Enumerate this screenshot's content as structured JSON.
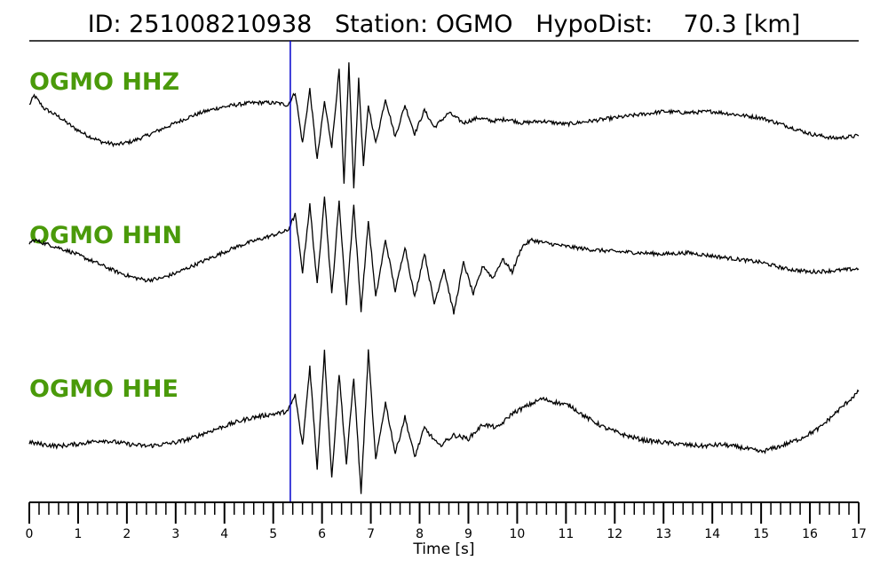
{
  "header": {
    "id_label": "ID:",
    "id_value": "251008210938",
    "station_label": "Station:",
    "station_value": "OGMO",
    "hypodist_label": "HypoDist:",
    "hypodist_value": "70.3",
    "hypodist_unit": "[km]"
  },
  "colors": {
    "trace": "#000000",
    "pick_line": "#0000cc",
    "label": "#4a9a0a"
  },
  "chart_data": {
    "type": "line",
    "xlabel": "Time [s]",
    "xlim": [
      0,
      17
    ],
    "major_ticks": [
      0,
      1,
      2,
      3,
      4,
      5,
      6,
      7,
      8,
      9,
      10,
      11,
      12,
      13,
      14,
      15,
      16,
      17
    ],
    "minor_step": 0.2,
    "pick_time": 5.35,
    "series": [
      {
        "name": "OGMO HHZ",
        "description": "waveform trace, normalized amplitude (positive up)",
        "x": [
          0,
          0.1,
          0.3,
          0.6,
          0.9,
          1.2,
          1.5,
          1.8,
          2.1,
          2.4,
          2.7,
          3.0,
          3.3,
          3.6,
          3.9,
          4.2,
          4.5,
          4.8,
          5.1,
          5.3,
          5.45,
          5.6,
          5.75,
          5.9,
          6.05,
          6.2,
          6.35,
          6.45,
          6.55,
          6.65,
          6.75,
          6.85,
          6.95,
          7.1,
          7.3,
          7.5,
          7.7,
          7.9,
          8.1,
          8.3,
          8.6,
          8.9,
          9.2,
          9.5,
          9.8,
          10.1,
          10.5,
          11.0,
          11.5,
          12.0,
          12.5,
          13.0,
          13.5,
          14.0,
          14.5,
          15.0,
          15.5,
          16.0,
          16.5,
          17.0
        ],
        "values": [
          0.3,
          0.45,
          0.25,
          0.12,
          -0.05,
          -0.18,
          -0.28,
          -0.32,
          -0.27,
          -0.18,
          -0.08,
          0.02,
          0.12,
          0.2,
          0.26,
          0.3,
          0.33,
          0.34,
          0.33,
          0.3,
          0.5,
          -0.3,
          0.55,
          -0.55,
          0.35,
          -0.35,
          0.85,
          -0.95,
          0.95,
          -1.0,
          0.7,
          -0.65,
          0.3,
          -0.3,
          0.4,
          -0.2,
          0.3,
          -0.15,
          0.22,
          -0.05,
          0.18,
          0.02,
          0.1,
          0.05,
          0.08,
          0.02,
          0.05,
          0.0,
          0.05,
          0.1,
          0.15,
          0.2,
          0.18,
          0.2,
          0.15,
          0.1,
          -0.02,
          -0.15,
          -0.22,
          -0.18
        ]
      },
      {
        "name": "OGMO HHN",
        "description": "waveform trace, normalized amplitude (positive up)",
        "x": [
          0,
          0.1,
          0.3,
          0.6,
          0.9,
          1.2,
          1.5,
          1.8,
          2.1,
          2.4,
          2.7,
          3.0,
          3.3,
          3.6,
          3.9,
          4.2,
          4.5,
          4.8,
          5.1,
          5.3,
          5.45,
          5.6,
          5.75,
          5.9,
          6.05,
          6.2,
          6.35,
          6.5,
          6.65,
          6.8,
          6.95,
          7.1,
          7.3,
          7.5,
          7.7,
          7.9,
          8.1,
          8.3,
          8.5,
          8.7,
          8.9,
          9.1,
          9.3,
          9.5,
          9.7,
          9.9,
          10.1,
          10.3,
          10.6,
          11.0,
          11.5,
          12.0,
          12.5,
          13.0,
          13.5,
          14.0,
          14.5,
          15.0,
          15.5,
          16.0,
          16.5,
          17.0
        ],
        "values": [
          0.25,
          0.3,
          0.25,
          0.18,
          0.1,
          0.0,
          -0.1,
          -0.2,
          -0.28,
          -0.33,
          -0.3,
          -0.22,
          -0.12,
          -0.02,
          0.08,
          0.18,
          0.26,
          0.33,
          0.4,
          0.45,
          0.7,
          -0.2,
          0.85,
          -0.4,
          1.0,
          -0.55,
          0.9,
          -0.7,
          0.85,
          -0.8,
          0.6,
          -0.6,
          0.3,
          -0.5,
          0.2,
          -0.6,
          0.1,
          -0.7,
          -0.15,
          -0.85,
          -0.05,
          -0.55,
          -0.1,
          -0.3,
          0.0,
          -0.2,
          0.2,
          0.3,
          0.25,
          0.2,
          0.15,
          0.12,
          0.1,
          0.08,
          0.1,
          0.05,
          0.0,
          -0.05,
          -0.15,
          -0.2,
          -0.18,
          -0.15
        ]
      },
      {
        "name": "OGMO HHE",
        "description": "waveform trace, normalized amplitude (positive up)",
        "x": [
          0,
          0.3,
          0.6,
          0.9,
          1.2,
          1.5,
          1.8,
          2.1,
          2.4,
          2.7,
          3.0,
          3.3,
          3.6,
          3.9,
          4.2,
          4.5,
          4.8,
          5.1,
          5.3,
          5.45,
          5.6,
          5.75,
          5.9,
          6.05,
          6.2,
          6.35,
          6.5,
          6.65,
          6.8,
          6.95,
          7.1,
          7.3,
          7.5,
          7.7,
          7.9,
          8.1,
          8.4,
          8.7,
          9.0,
          9.3,
          9.6,
          9.9,
          10.2,
          10.5,
          10.8,
          11.1,
          11.4,
          11.8,
          12.2,
          12.6,
          13.0,
          13.4,
          13.8,
          14.2,
          14.6,
          15.0,
          15.4,
          15.8,
          16.2,
          16.6,
          17.0
        ],
        "values": [
          -0.25,
          -0.28,
          -0.3,
          -0.28,
          -0.25,
          -0.22,
          -0.25,
          -0.28,
          -0.3,
          -0.28,
          -0.25,
          -0.2,
          -0.12,
          -0.05,
          0.02,
          0.08,
          0.12,
          0.15,
          0.18,
          0.4,
          -0.3,
          0.8,
          -0.6,
          1.0,
          -0.75,
          0.7,
          -0.55,
          0.65,
          -0.95,
          1.0,
          -0.5,
          0.3,
          -0.4,
          0.1,
          -0.45,
          -0.05,
          -0.3,
          -0.15,
          -0.2,
          0.0,
          -0.05,
          0.15,
          0.25,
          0.35,
          0.3,
          0.25,
          0.1,
          -0.05,
          -0.15,
          -0.22,
          -0.25,
          -0.28,
          -0.3,
          -0.28,
          -0.32,
          -0.38,
          -0.3,
          -0.2,
          -0.05,
          0.2,
          0.45
        ]
      }
    ]
  }
}
